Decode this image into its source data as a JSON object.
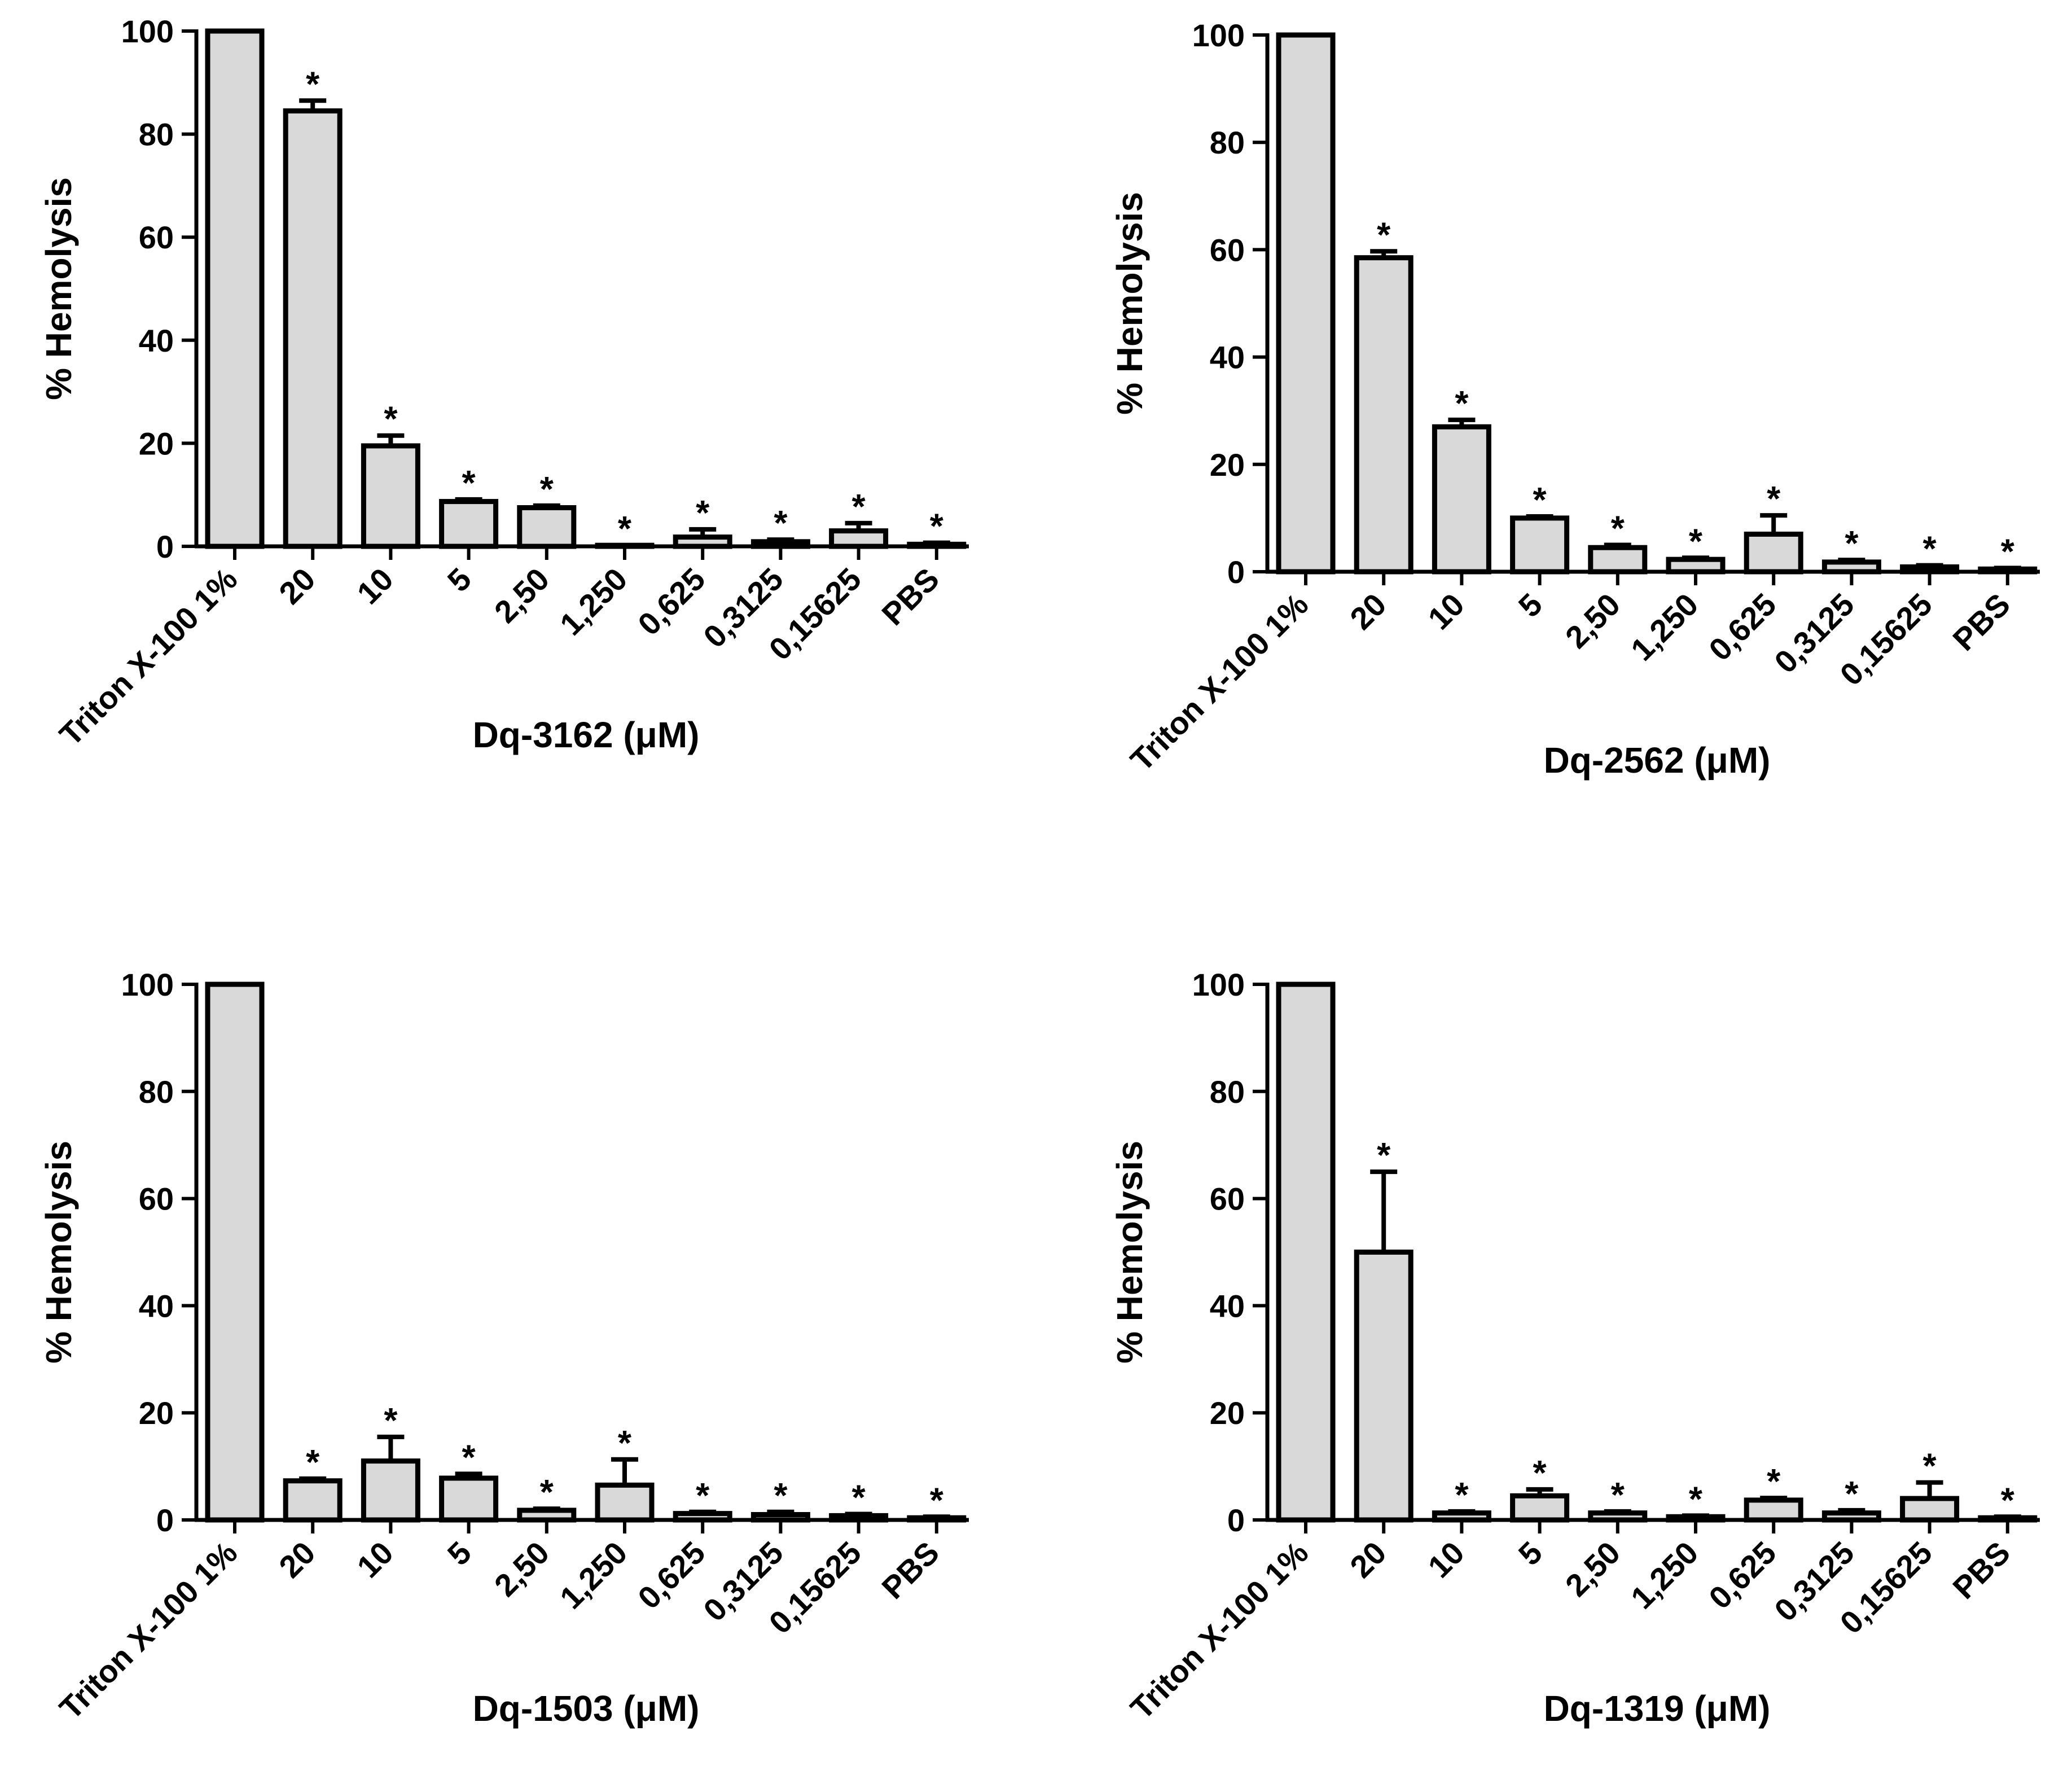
{
  "chart_data": [
    {
      "type": "bar",
      "categories": [
        "Triton X-100 1%",
        "20",
        "10",
        "5",
        "2,50",
        "1,250",
        "0,625",
        "0,3125",
        "0,15625",
        "PBS"
      ],
      "values": [
        100,
        84.5,
        19.5,
        8.7,
        7.5,
        0.2,
        1.8,
        0.9,
        3.0,
        0.4
      ],
      "errors": [
        0,
        2.0,
        2.0,
        0.4,
        0.4,
        0,
        1.5,
        0.4,
        1.5,
        0.3
      ],
      "significant": [
        "",
        "*",
        "*",
        "*",
        "*",
        "*",
        "*",
        "*",
        "*",
        "*"
      ],
      "xlabel": "Dq-3162 (μM)",
      "ylabel": "% Hemolysis",
      "ylim": [
        0,
        100
      ],
      "yticks": [
        0,
        20,
        40,
        60,
        80,
        100
      ],
      "grid": false,
      "bar_color": "#d9d9d9",
      "edge_color": "#000000"
    },
    {
      "type": "bar",
      "categories": [
        "Triton X-100 1%",
        "20",
        "10",
        "5",
        "2,50",
        "1,250",
        "0,625",
        "0,3125",
        "0,15625",
        "PBS"
      ],
      "values": [
        100,
        58.5,
        27.0,
        10.0,
        4.5,
        2.3,
        7.0,
        1.8,
        0.9,
        0.5
      ],
      "errors": [
        0,
        1.2,
        1.3,
        0.3,
        0.5,
        0.3,
        3.5,
        0.4,
        0.3,
        0.2
      ],
      "significant": [
        "",
        "*",
        "*",
        "*",
        "*",
        "*",
        "*",
        "*",
        "*",
        "*"
      ],
      "xlabel": "Dq-2562 (μM)",
      "ylabel": "% Hemolysis",
      "ylim": [
        0,
        100
      ],
      "yticks": [
        0,
        20,
        40,
        60,
        80,
        100
      ],
      "grid": false,
      "bar_color": "#d9d9d9",
      "edge_color": "#000000"
    },
    {
      "type": "bar",
      "categories": [
        "Triton X-100 1%",
        "20",
        "10",
        "5",
        "2,50",
        "1,250",
        "0,625",
        "0,3125",
        "0,15625",
        "PBS"
      ],
      "values": [
        100,
        7.3,
        11.0,
        7.8,
        1.8,
        6.5,
        1.2,
        1.0,
        0.8,
        0.4
      ],
      "errors": [
        0,
        0.4,
        4.5,
        0.8,
        0.3,
        4.8,
        0.3,
        0.5,
        0.3,
        0.2
      ],
      "significant": [
        "",
        "*",
        "*",
        "*",
        "*",
        "*",
        "*",
        "*",
        "*",
        "*"
      ],
      "xlabel": "Dq-1503 (μM)",
      "ylabel": "% Hemolysis",
      "ylim": [
        0,
        100
      ],
      "yticks": [
        0,
        20,
        40,
        60,
        80,
        100
      ],
      "grid": false,
      "bar_color": "#d9d9d9",
      "edge_color": "#000000"
    },
    {
      "type": "bar",
      "categories": [
        "Triton X-100 1%",
        "20",
        "10",
        "5",
        "2,50",
        "1,250",
        "0,625",
        "0,3125",
        "0,15625",
        "PBS"
      ],
      "values": [
        100,
        50.0,
        1.3,
        4.5,
        1.3,
        0.6,
        3.7,
        1.3,
        4.0,
        0.4
      ],
      "errors": [
        0,
        15.0,
        0.3,
        1.2,
        0.3,
        0.2,
        0.4,
        0.5,
        3.0,
        0.2
      ],
      "significant": [
        "",
        "*",
        "*",
        "*",
        "*",
        "*",
        "*",
        "*",
        "*",
        "*"
      ],
      "xlabel": "Dq-1319 (μM)",
      "ylabel": "% Hemolysis",
      "ylim": [
        0,
        100
      ],
      "yticks": [
        0,
        20,
        40,
        60,
        80,
        100
      ],
      "grid": false,
      "bar_color": "#d9d9d9",
      "edge_color": "#000000"
    }
  ]
}
